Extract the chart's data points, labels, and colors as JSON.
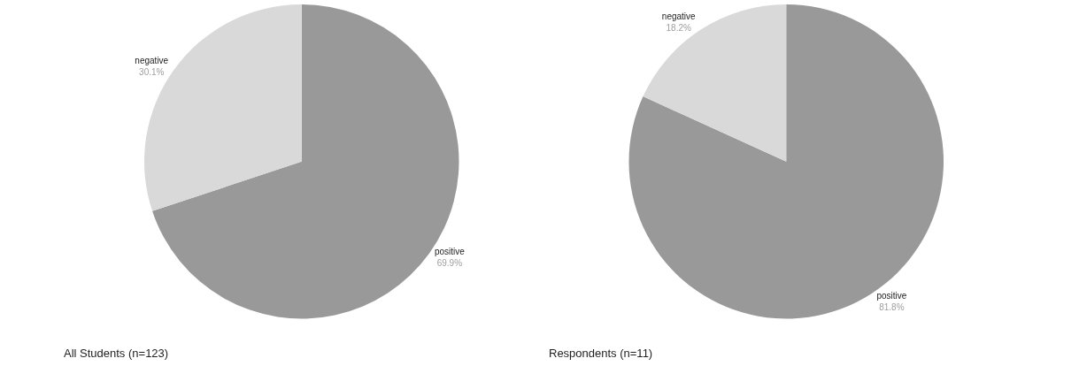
{
  "chart_data": [
    {
      "type": "pie",
      "title": "All Students (n=123)",
      "categories": [
        "positive",
        "negative"
      ],
      "values": [
        69.9,
        30.1
      ],
      "colors": [
        "#999999",
        "#d9d9d9"
      ],
      "value_labels": [
        "69.9%",
        "30.1%"
      ],
      "legend": false
    },
    {
      "type": "pie",
      "title": "Respondents (n=11)",
      "categories": [
        "positive",
        "negative"
      ],
      "values": [
        81.8,
        18.2
      ],
      "colors": [
        "#999999",
        "#d9d9d9"
      ],
      "value_labels": [
        "81.8%",
        "18.2%"
      ],
      "legend": false
    }
  ]
}
